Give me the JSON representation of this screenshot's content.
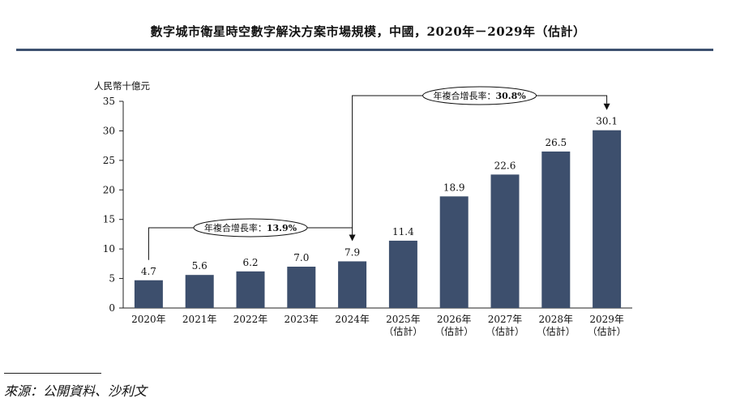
{
  "title": "數字城市衛星時空數字解決方案市場規模，中國，2020年－2029年（估計）",
  "source_note": "來源：公開資料、沙利文",
  "colors": {
    "bar": "#3d4f6d",
    "title_rule": "#3d5170",
    "axis": "#222222",
    "text": "#111111"
  },
  "chart_data": {
    "type": "bar",
    "title": "數字城市衛星時空數字解決方案市場規模，中國，2020年－2029年（估計）",
    "ylabel": "人民幣十億元",
    "xlabel": "",
    "ylim": [
      0,
      35
    ],
    "yticks": [
      0,
      5,
      10,
      15,
      20,
      25,
      30,
      35
    ],
    "grid": false,
    "categories": [
      [
        "2020年"
      ],
      [
        "2021年"
      ],
      [
        "2022年"
      ],
      [
        "2023年"
      ],
      [
        "2024年"
      ],
      [
        "2025年",
        "（估計）"
      ],
      [
        "2026年",
        "（估計）"
      ],
      [
        "2027年",
        "（估計）"
      ],
      [
        "2028年",
        "（估計）"
      ],
      [
        "2029年",
        "（估計）"
      ]
    ],
    "values": [
      4.7,
      5.6,
      6.2,
      7.0,
      7.9,
      11.4,
      18.9,
      22.6,
      26.5,
      30.1
    ],
    "value_labels": [
      "4.7",
      "5.6",
      "6.2",
      "7.0",
      "7.9",
      "11.4",
      "18.9",
      "22.6",
      "26.5",
      "30.1"
    ],
    "annotations": [
      {
        "label": "年複合增長率：",
        "value": "13.9%",
        "from_index": 0,
        "to_index": 4
      },
      {
        "label": "年複合增長率：",
        "value": "30.8%",
        "from_index": 4,
        "to_index": 9
      }
    ]
  }
}
